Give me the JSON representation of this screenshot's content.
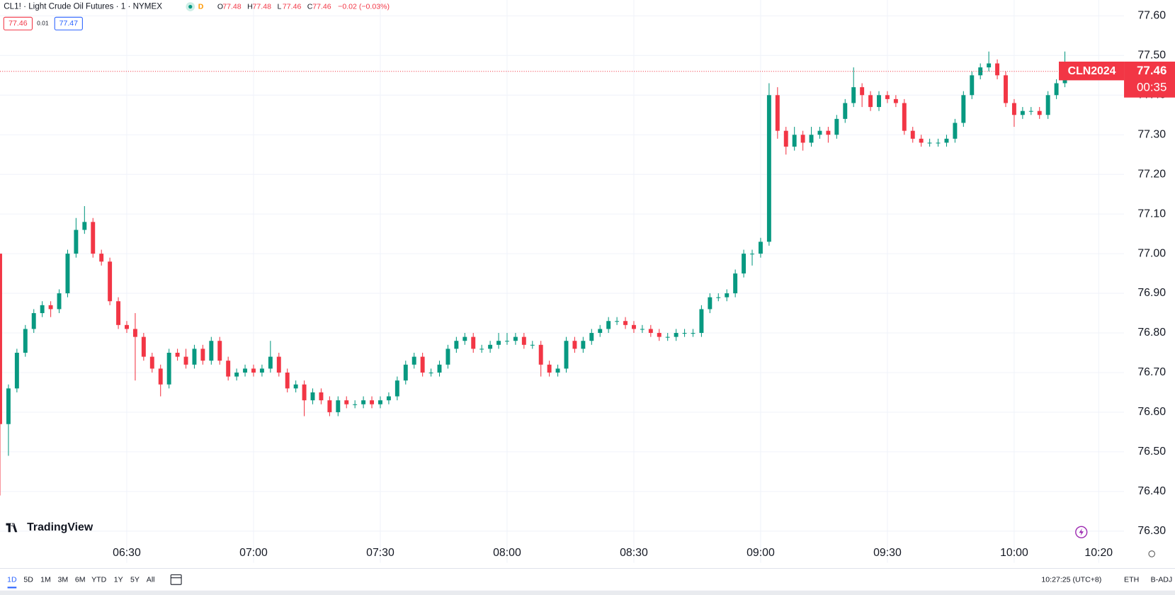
{
  "header": {
    "symbol": "CL1! · Light Crude Oil Futures · 1 · NYMEX",
    "market_badge": "D",
    "ohlc": [
      {
        "label": "O",
        "value": "77.48"
      },
      {
        "label": "H",
        "value": "77.48"
      },
      {
        "label": "L",
        "value": "77.46"
      },
      {
        "label": "C",
        "value": "77.46"
      }
    ],
    "change": "−0.02 (−0.03%)",
    "bid": "77.46",
    "spread": "0.01",
    "ask": "77.47"
  },
  "chart_data": {
    "type": "candlestick",
    "x": [
      "06:00",
      "06:02",
      "06:04",
      "06:06",
      "06:08",
      "06:10",
      "06:12",
      "06:14",
      "06:16",
      "06:18",
      "06:20",
      "06:22",
      "06:24",
      "06:26",
      "06:28",
      "06:30",
      "06:32",
      "06:34",
      "06:36",
      "06:38",
      "06:40",
      "06:42",
      "06:44",
      "06:46",
      "06:48",
      "06:50",
      "06:52",
      "06:54",
      "06:56",
      "06:58",
      "07:00",
      "07:02",
      "07:04",
      "07:06",
      "07:08",
      "07:10",
      "07:12",
      "07:14",
      "07:16",
      "07:18",
      "07:20",
      "07:22",
      "07:24",
      "07:26",
      "07:28",
      "07:30",
      "07:32",
      "07:34",
      "07:36",
      "07:38",
      "07:40",
      "07:42",
      "07:44",
      "07:46",
      "07:48",
      "07:50",
      "07:52",
      "07:54",
      "07:56",
      "07:58",
      "08:00",
      "08:02",
      "08:04",
      "08:06",
      "08:08",
      "08:10",
      "08:12",
      "08:14",
      "08:16",
      "08:18",
      "08:20",
      "08:22",
      "08:24",
      "08:26",
      "08:28",
      "08:30",
      "08:32",
      "08:34",
      "08:36",
      "08:38",
      "08:40",
      "08:42",
      "08:44",
      "08:46",
      "08:48",
      "08:50",
      "08:52",
      "08:54",
      "08:56",
      "08:58",
      "09:00",
      "09:02",
      "09:04",
      "09:06",
      "09:08",
      "09:10",
      "09:12",
      "09:14",
      "09:16",
      "09:18",
      "09:20",
      "09:22",
      "09:24",
      "09:26",
      "09:28",
      "09:30",
      "09:32",
      "09:34",
      "09:36",
      "09:38",
      "09:40",
      "09:42",
      "09:44",
      "09:46",
      "09:48",
      "09:50",
      "09:52",
      "09:54",
      "09:56",
      "09:58",
      "10:00",
      "10:02",
      "10:04",
      "10:06",
      "10:08",
      "10:10",
      "10:12"
    ],
    "open": [
      77.0,
      76.57,
      76.66,
      76.75,
      76.81,
      76.85,
      76.87,
      76.86,
      76.9,
      77.0,
      77.06,
      77.08,
      77.0,
      76.98,
      76.88,
      76.82,
      76.81,
      76.79,
      76.74,
      76.71,
      76.67,
      76.75,
      76.74,
      76.72,
      76.76,
      76.73,
      76.78,
      76.73,
      76.69,
      76.7,
      76.71,
      76.7,
      76.71,
      76.74,
      76.7,
      76.66,
      76.67,
      76.63,
      76.65,
      76.63,
      76.6,
      76.63,
      76.62,
      76.62,
      76.63,
      76.62,
      76.63,
      76.64,
      76.68,
      76.72,
      76.74,
      76.7,
      76.7,
      76.72,
      76.76,
      76.78,
      76.79,
      76.76,
      76.76,
      76.77,
      76.78,
      76.78,
      76.79,
      76.77,
      76.77,
      76.72,
      76.7,
      76.71,
      76.78,
      76.76,
      76.78,
      76.8,
      76.81,
      76.83,
      76.83,
      76.82,
      76.81,
      76.81,
      76.8,
      76.79,
      76.79,
      76.8,
      76.8,
      76.8,
      76.86,
      76.89,
      76.89,
      76.9,
      76.95,
      77.0,
      77.0,
      77.03,
      77.4,
      77.31,
      77.27,
      77.3,
      77.28,
      77.3,
      77.31,
      77.3,
      77.34,
      77.38,
      77.42,
      77.4,
      77.37,
      77.4,
      77.39,
      77.38,
      77.31,
      77.29,
      77.28,
      77.28,
      77.28,
      77.29,
      77.33,
      77.4,
      77.45,
      77.47,
      77.48,
      77.45,
      77.38,
      77.35,
      77.36,
      77.36,
      77.35,
      77.4,
      77.43
    ],
    "high": [
      77.0,
      76.67,
      76.76,
      76.82,
      76.86,
      76.88,
      76.88,
      76.91,
      77.01,
      77.09,
      77.12,
      77.09,
      77.01,
      76.99,
      76.89,
      76.83,
      76.85,
      76.8,
      76.75,
      76.72,
      76.76,
      76.76,
      76.76,
      76.77,
      76.77,
      76.79,
      76.79,
      76.74,
      76.71,
      76.72,
      76.72,
      76.72,
      76.78,
      76.75,
      76.71,
      76.68,
      76.68,
      76.66,
      76.66,
      76.64,
      76.64,
      76.64,
      76.63,
      76.64,
      76.64,
      76.64,
      76.65,
      76.69,
      76.73,
      76.75,
      76.75,
      76.71,
      76.73,
      76.77,
      76.79,
      76.8,
      76.8,
      76.77,
      76.78,
      76.8,
      76.8,
      76.8,
      76.8,
      76.78,
      76.78,
      76.73,
      76.72,
      76.79,
      76.79,
      76.79,
      76.81,
      76.82,
      76.84,
      76.84,
      76.84,
      76.83,
      76.82,
      76.82,
      76.81,
      76.8,
      76.81,
      76.81,
      76.81,
      76.87,
      76.9,
      76.9,
      76.91,
      76.96,
      77.01,
      77.01,
      77.04,
      77.43,
      77.42,
      77.32,
      77.32,
      77.31,
      77.32,
      77.32,
      77.32,
      77.35,
      77.39,
      77.47,
      77.43,
      77.41,
      77.41,
      77.41,
      77.4,
      77.39,
      77.32,
      77.3,
      77.29,
      77.29,
      77.3,
      77.34,
      77.41,
      77.46,
      77.48,
      77.51,
      77.49,
      77.46,
      77.39,
      77.37,
      77.37,
      77.37,
      77.41,
      77.44,
      77.51
    ],
    "low": [
      76.39,
      76.49,
      76.65,
      76.74,
      76.8,
      76.84,
      76.84,
      76.85,
      76.89,
      76.99,
      77.05,
      76.99,
      76.97,
      76.87,
      76.81,
      76.8,
      76.68,
      76.73,
      76.7,
      76.64,
      76.66,
      76.73,
      76.71,
      76.71,
      76.72,
      76.72,
      76.72,
      76.68,
      76.68,
      76.69,
      76.69,
      76.69,
      76.7,
      76.69,
      76.65,
      76.65,
      76.59,
      76.62,
      76.62,
      76.59,
      76.59,
      76.61,
      76.61,
      76.61,
      76.61,
      76.61,
      76.62,
      76.63,
      76.67,
      76.71,
      76.69,
      76.69,
      76.69,
      76.71,
      76.75,
      76.77,
      76.75,
      76.75,
      76.75,
      76.76,
      76.77,
      76.77,
      76.76,
      76.76,
      76.69,
      76.69,
      76.69,
      76.7,
      76.75,
      76.75,
      76.77,
      76.79,
      76.8,
      76.82,
      76.81,
      76.8,
      76.8,
      76.79,
      76.78,
      76.78,
      76.78,
      76.79,
      76.79,
      76.79,
      76.85,
      76.88,
      76.88,
      76.89,
      76.94,
      76.97,
      76.99,
      77.02,
      77.29,
      77.25,
      77.26,
      77.26,
      77.27,
      77.29,
      77.28,
      77.29,
      77.33,
      77.37,
      77.37,
      77.36,
      77.36,
      77.38,
      77.37,
      77.3,
      77.28,
      77.27,
      77.27,
      77.27,
      77.27,
      77.28,
      77.32,
      77.39,
      77.44,
      77.46,
      77.44,
      77.37,
      77.32,
      77.34,
      77.35,
      77.34,
      77.34,
      77.39,
      77.42
    ],
    "close": [
      76.57,
      76.66,
      76.75,
      76.81,
      76.85,
      76.87,
      76.86,
      76.9,
      77.0,
      77.06,
      77.08,
      77.0,
      76.98,
      76.88,
      76.82,
      76.81,
      76.79,
      76.74,
      76.71,
      76.67,
      76.75,
      76.74,
      76.72,
      76.76,
      76.73,
      76.78,
      76.73,
      76.69,
      76.7,
      76.71,
      76.7,
      76.71,
      76.74,
      76.7,
      76.66,
      76.67,
      76.63,
      76.65,
      76.63,
      76.6,
      76.63,
      76.62,
      76.62,
      76.63,
      76.62,
      76.63,
      76.64,
      76.68,
      76.72,
      76.74,
      76.7,
      76.7,
      76.72,
      76.76,
      76.78,
      76.79,
      76.76,
      76.76,
      76.77,
      76.78,
      76.78,
      76.79,
      76.77,
      76.77,
      76.72,
      76.7,
      76.71,
      76.78,
      76.76,
      76.78,
      76.8,
      76.81,
      76.83,
      76.83,
      76.82,
      76.81,
      76.81,
      76.8,
      76.79,
      76.79,
      76.8,
      76.8,
      76.8,
      76.86,
      76.89,
      76.89,
      76.9,
      76.95,
      77.0,
      77.0,
      77.03,
      77.4,
      77.31,
      77.27,
      77.3,
      77.28,
      77.3,
      77.31,
      77.3,
      77.34,
      77.38,
      77.42,
      77.4,
      77.37,
      77.4,
      77.39,
      77.38,
      77.31,
      77.29,
      77.28,
      77.28,
      77.28,
      77.29,
      77.33,
      77.4,
      77.45,
      77.47,
      77.48,
      77.45,
      77.38,
      77.35,
      77.36,
      77.36,
      77.35,
      77.4,
      77.43,
      77.46
    ],
    "up_color": "#089981",
    "down_color": "#f23645",
    "xlim": [
      "06:00",
      "10:26"
    ],
    "xticks": [
      "06:30",
      "07:00",
      "07:30",
      "08:00",
      "08:30",
      "09:00",
      "09:30",
      "10:00",
      "10:20"
    ],
    "ylim": [
      76.22,
      77.64
    ],
    "yticks": [
      {
        "value": 76.3,
        "label": "76.30"
      },
      {
        "value": 76.4,
        "label": "76.40"
      },
      {
        "value": 76.5,
        "label": "76.50"
      },
      {
        "value": 76.6,
        "label": "76.60"
      },
      {
        "value": 76.7,
        "label": "76.70"
      },
      {
        "value": 76.8,
        "label": "76.80"
      },
      {
        "value": 76.9,
        "label": "76.90"
      },
      {
        "value": 77.0,
        "label": "77.00"
      },
      {
        "value": 77.1,
        "label": "77.10"
      },
      {
        "value": 77.2,
        "label": "77.20"
      },
      {
        "value": 77.3,
        "label": "77.30"
      },
      {
        "value": 77.4,
        "label": "77.40"
      },
      {
        "value": 77.5,
        "label": "77.50"
      },
      {
        "value": 77.6,
        "label": "77.60"
      }
    ],
    "grid": true,
    "last_price": 77.46,
    "contract": "CLN2024",
    "countdown": "00:35"
  },
  "footer": {
    "logo": "TradingView",
    "periods": [
      "1D",
      "5D",
      "1M",
      "3M",
      "6M",
      "YTD",
      "1Y",
      "5Y",
      "All"
    ],
    "clock": "10:27:25 (UTC+8)",
    "session": "ETH",
    "adjustment": "B-ADJ"
  }
}
